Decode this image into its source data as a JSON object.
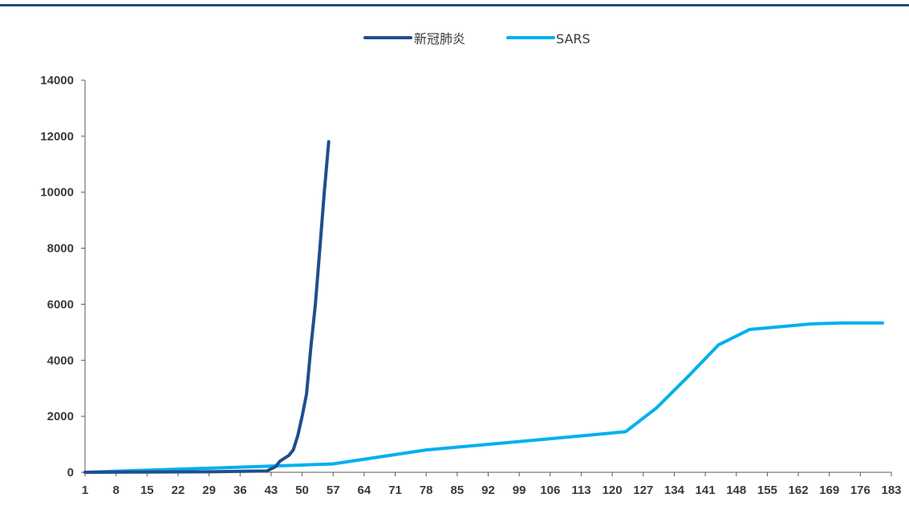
{
  "chart_data": {
    "type": "line",
    "title": "",
    "xlabel": "",
    "ylabel": "",
    "legend_position": "top-center",
    "grid": false,
    "xlim": [
      1,
      183
    ],
    "ylim": [
      0,
      14000
    ],
    "x_ticks": [
      1,
      8,
      15,
      22,
      29,
      36,
      43,
      50,
      57,
      64,
      71,
      78,
      85,
      92,
      99,
      106,
      113,
      120,
      127,
      134,
      141,
      148,
      155,
      162,
      169,
      176,
      183
    ],
    "y_ticks": [
      0,
      2000,
      4000,
      6000,
      8000,
      10000,
      12000,
      14000
    ],
    "series": [
      {
        "name": "新冠肺炎",
        "color": "#1f4e8c",
        "points": [
          [
            1,
            0
          ],
          [
            30,
            20
          ],
          [
            38,
            40
          ],
          [
            42,
            45
          ],
          [
            44,
            200
          ],
          [
            45,
            400
          ],
          [
            46,
            500
          ],
          [
            47,
            600
          ],
          [
            48,
            800
          ],
          [
            49,
            1300
          ],
          [
            50,
            2000
          ],
          [
            51,
            2800
          ],
          [
            52,
            4500
          ],
          [
            53,
            6000
          ],
          [
            54,
            8000
          ],
          [
            55,
            10000
          ],
          [
            56,
            11800
          ]
        ]
      },
      {
        "name": "SARS",
        "color": "#00b0f0",
        "points": [
          [
            1,
            0
          ],
          [
            43,
            220
          ],
          [
            57,
            300
          ],
          [
            78,
            800
          ],
          [
            92,
            1000
          ],
          [
            106,
            1200
          ],
          [
            123,
            1450
          ],
          [
            130,
            2300
          ],
          [
            137,
            3400
          ],
          [
            144,
            4550
          ],
          [
            151,
            5100
          ],
          [
            158,
            5200
          ],
          [
            165,
            5300
          ],
          [
            172,
            5330
          ],
          [
            181,
            5330
          ]
        ]
      }
    ]
  }
}
